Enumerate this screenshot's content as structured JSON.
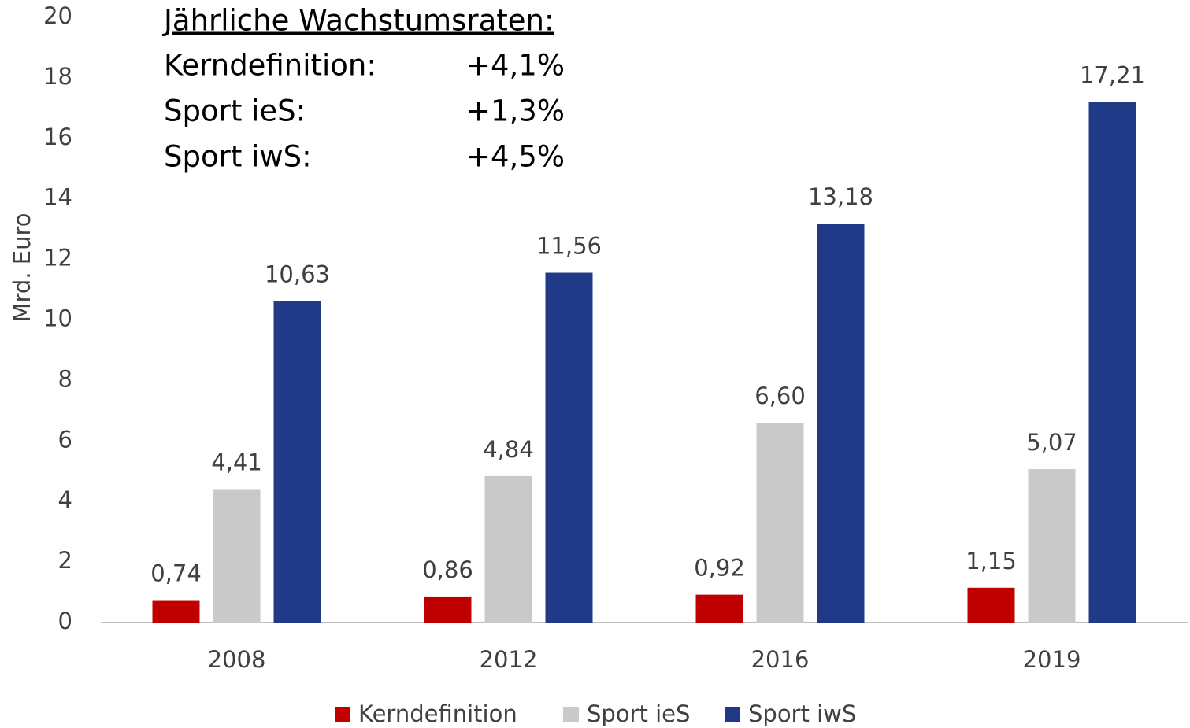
{
  "chart_data": {
    "type": "bar",
    "categories": [
      "2008",
      "2012",
      "2016",
      "2019"
    ],
    "series": [
      {
        "name": "Kerndefinition",
        "color": "#c00000",
        "values": [
          0.74,
          0.86,
          0.92,
          1.15
        ],
        "value_labels": [
          "0,74",
          "0,86",
          "0,92",
          "1,15"
        ]
      },
      {
        "name": "Sport ieS",
        "color": "#c9c9c9",
        "values": [
          4.41,
          4.84,
          6.6,
          5.07
        ],
        "value_labels": [
          "4,41",
          "4,84",
          "6,60",
          "5,07"
        ]
      },
      {
        "name": "Sport iwS",
        "color": "#203a87",
        "values": [
          10.63,
          11.56,
          13.18,
          17.21
        ],
        "value_labels": [
          "10,63",
          "11,56",
          "13,18",
          "17,21"
        ]
      }
    ],
    "ylabel": "Mrd. Euro",
    "ylim": [
      0,
      20
    ],
    "yticks": [
      0,
      2,
      4,
      6,
      8,
      10,
      12,
      14,
      16,
      18,
      20
    ],
    "grid": false,
    "legend": "bottom",
    "annotation": {
      "title": "Jährliche Wachstumsraten:",
      "rows": [
        {
          "label": "Kerndefinition:",
          "rate": "+4,1%"
        },
        {
          "label": "Sport ieS:",
          "rate": "+1,3%"
        },
        {
          "label": "Sport iwS:",
          "rate": "+4,5%"
        }
      ]
    }
  }
}
